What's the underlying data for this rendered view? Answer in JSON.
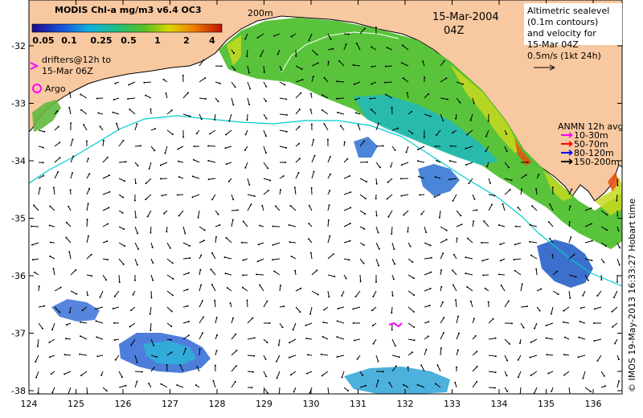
{
  "title": "MODIS Chl-a mg/m3 v6.4 OC3",
  "colorbar_ticks": [
    "0.05",
    "0.1",
    "0.25",
    "0.5",
    "1",
    "2",
    "4"
  ],
  "date": "15-Mar-2004",
  "time": "04Z",
  "isobath_label": "200m",
  "altimetry_note": [
    "Altimetric sealevel",
    "(0.1m contours)",
    "and velocity for",
    "15-Mar 04Z",
    "0.5m/s (1kt 24h)"
  ],
  "drifters_note": [
    "drifters@12h to",
    "15-Mar 06Z"
  ],
  "argo_label": "Argo",
  "anmn": {
    "title": "ANMN 12h avg",
    "items": [
      {
        "label": "10-30m",
        "color": "#ff00ff"
      },
      {
        "label": "50-70m",
        "color": "#ff0000"
      },
      {
        "label": "80-120m",
        "color": "#0000ff"
      },
      {
        "label": "150-200m",
        "color": "#000000"
      }
    ]
  },
  "credit": "© IMOS 19-May-2013 16:33:27 Hobart time",
  "x_ticks": [
    "124",
    "125",
    "126",
    "127",
    "128",
    "129",
    "130",
    "131",
    "132",
    "133",
    "134",
    "135",
    "136"
  ],
  "y_ticks": [
    "-32",
    "-33",
    "-34",
    "-35",
    "-36",
    "-37",
    "-38"
  ],
  "colors": {
    "land": "#f8c8a0",
    "ocean": "#ffffff",
    "isobath": "#00cccc",
    "drifter": "#ff00ff",
    "argo": "#ff00ff"
  }
}
